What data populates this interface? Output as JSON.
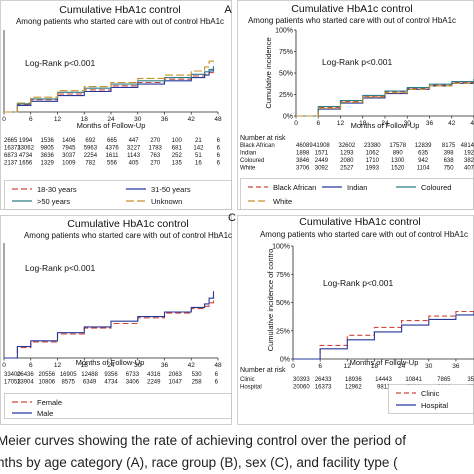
{
  "chart_data": [
    {
      "type": "line",
      "panel_letter": "A",
      "title": "Cumulative HbA1c control",
      "subtitle": "Among patients who started care with out of control HbA1c",
      "xlabel": "Months of Follow-Up",
      "ylabel": "",
      "annotation": "Log-Rank p<0.001",
      "x_ticks": [
        "0",
        "6",
        "12",
        "18",
        "24",
        "30",
        "36",
        "42",
        "48"
      ],
      "y_ticks": [],
      "xlim": [
        0,
        48
      ],
      "ylim": [
        0,
        1
      ],
      "grid": false,
      "risk_table_label": "",
      "risk_table": [
        {
          "group": "",
          "values": [
            "2665",
            "1994",
            "1536",
            "1406",
            "692",
            "665",
            "447",
            "270",
            "100",
            "21",
            "6"
          ]
        },
        {
          "group": "",
          "values": [
            "16373",
            "13062",
            "9805",
            "7945",
            "5963",
            "4376",
            "3227",
            "1783",
            "681",
            "142",
            "6"
          ]
        },
        {
          "group": "",
          "values": [
            "6873",
            "4734",
            "3636",
            "3037",
            "2254",
            "1611",
            "1143",
            "763",
            "252",
            "51",
            "6"
          ]
        },
        {
          "group": "",
          "values": [
            "2137",
            "1656",
            "1329",
            "1009",
            "782",
            "556",
            "405",
            "270",
            "135",
            "16",
            "6"
          ]
        }
      ],
      "series": [
        {
          "name": "18-30 years",
          "color": "#d0453c",
          "dash": "6,3",
          "x": [
            0,
            3,
            6,
            12,
            18,
            24,
            30,
            36,
            42,
            45,
            46,
            47
          ],
          "y": [
            0,
            0.09,
            0.15,
            0.22,
            0.27,
            0.32,
            0.36,
            0.4,
            0.44,
            0.46,
            0.48,
            0.51
          ]
        },
        {
          "name": "31-50 years",
          "color": "#27379a",
          "dash": "",
          "x": [
            0,
            3,
            6,
            12,
            18,
            24,
            30,
            36,
            42,
            45,
            46,
            47
          ],
          "y": [
            0,
            0.08,
            0.13,
            0.2,
            0.25,
            0.3,
            0.34,
            0.38,
            0.42,
            0.45,
            0.5,
            0.55
          ]
        },
        {
          "name": ">50 years",
          "color": "#2d7d86",
          "dash": "",
          "x": [
            0,
            3,
            6,
            12,
            18,
            24,
            30,
            36,
            42,
            45,
            46,
            47
          ],
          "y": [
            0,
            0.1,
            0.16,
            0.24,
            0.29,
            0.34,
            0.38,
            0.42,
            0.46,
            0.49,
            0.52,
            0.56
          ]
        },
        {
          "name": "Unknown",
          "color": "#c8902c",
          "dash": "8,3",
          "x": [
            0,
            3,
            6,
            12,
            18,
            24,
            30,
            36,
            42,
            45,
            46,
            47
          ],
          "y": [
            0,
            0.11,
            0.18,
            0.26,
            0.31,
            0.36,
            0.41,
            0.45,
            0.5,
            0.55,
            0.62,
            0.63
          ]
        }
      ]
    },
    {
      "type": "line",
      "panel_letter": "",
      "title": "Cumulative HbA1c control",
      "subtitle": "Among patients who started care with out of control HbA1c",
      "xlabel": "Months of Follow-Up",
      "ylabel": "Cumulative incidence",
      "annotation": "Log-Rank p<0.001",
      "x_ticks": [
        "0",
        "6",
        "12",
        "18",
        "24",
        "30",
        "36",
        "42",
        "48"
      ],
      "y_ticks": [
        "0%",
        "25%",
        "50%",
        "75%",
        "100%"
      ],
      "xlim": [
        0,
        48
      ],
      "ylim": [
        0,
        1
      ],
      "grid": false,
      "risk_table_label": "Number at risk",
      "risk_table": [
        {
          "group": "Black African",
          "values": [
            "46089",
            "41908",
            "32602",
            "23380",
            "17578",
            "12839",
            "8175",
            "4814"
          ]
        },
        {
          "group": "Indian",
          "values": [
            "1898",
            "1571",
            "1293",
            "1062",
            "890",
            "635",
            "398",
            "192"
          ]
        },
        {
          "group": "Coloured",
          "values": [
            "3846",
            "2449",
            "2080",
            "1710",
            "1300",
            "942",
            "638",
            "382"
          ]
        },
        {
          "group": "White",
          "values": [
            "3706",
            "3092",
            "2527",
            "1993",
            "1520",
            "1104",
            "750",
            "407"
          ]
        }
      ],
      "series": [
        {
          "name": "Black African",
          "color": "#d0453c",
          "dash": "5,3",
          "x": [
            0,
            6,
            12,
            18,
            24,
            30,
            36,
            42,
            48
          ],
          "y": [
            0,
            0.1,
            0.17,
            0.23,
            0.28,
            0.32,
            0.36,
            0.39,
            0.42
          ]
        },
        {
          "name": "Indian",
          "color": "#27379a",
          "dash": "",
          "x": [
            0,
            6,
            12,
            18,
            24,
            30,
            36,
            42,
            48
          ],
          "y": [
            0,
            0.08,
            0.15,
            0.21,
            0.26,
            0.31,
            0.35,
            0.38,
            0.41
          ]
        },
        {
          "name": "Coloured",
          "color": "#2d7d86",
          "dash": "",
          "x": [
            0,
            6,
            12,
            18,
            24,
            30,
            36,
            42,
            48
          ],
          "y": [
            0,
            0.11,
            0.18,
            0.24,
            0.29,
            0.33,
            0.37,
            0.4,
            0.43
          ]
        },
        {
          "name": "White",
          "color": "#c8902c",
          "dash": "7,3",
          "x": [
            0,
            6,
            12,
            18,
            24,
            30,
            36,
            42,
            48
          ],
          "y": [
            0,
            0.09,
            0.16,
            0.22,
            0.27,
            0.31,
            0.35,
            0.38,
            0.4
          ]
        }
      ]
    },
    {
      "type": "line",
      "panel_letter": "",
      "title": "Cumulative HbA1c control",
      "subtitle": "Among patients who started care with out of control HbA1c",
      "xlabel": "Months of Follow-Up",
      "ylabel": "",
      "annotation": "Log-Rank p<0.001",
      "x_ticks": [
        "0",
        "6",
        "12",
        "18",
        "24",
        "30",
        "36",
        "42",
        "48"
      ],
      "y_ticks": [],
      "xlim": [
        0,
        48
      ],
      "ylim": [
        0,
        1
      ],
      "grid": false,
      "risk_table_label": "",
      "risk_table": [
        {
          "group": "",
          "values": [
            "33400",
            "26436",
            "20556",
            "16905",
            "12488",
            "9356",
            "6733",
            "4316",
            "2063",
            "530",
            "6"
          ]
        },
        {
          "group": "",
          "values": [
            "17053",
            "13904",
            "10806",
            "8575",
            "6349",
            "4734",
            "3406",
            "2249",
            "1047",
            "258",
            "6"
          ]
        }
      ],
      "series": [
        {
          "name": "Female",
          "color": "#d0453c",
          "dash": "6,3",
          "x": [
            0,
            3,
            6,
            12,
            18,
            24,
            30,
            36,
            42,
            45,
            46,
            47
          ],
          "y": [
            0,
            0.09,
            0.14,
            0.21,
            0.26,
            0.3,
            0.35,
            0.39,
            0.43,
            0.45,
            0.48,
            0.52
          ]
        },
        {
          "name": "Male",
          "color": "#27379a",
          "dash": "",
          "x": [
            0,
            3,
            6,
            12,
            18,
            24,
            30,
            36,
            42,
            45,
            46,
            47
          ],
          "y": [
            0,
            0.1,
            0.15,
            0.22,
            0.27,
            0.32,
            0.36,
            0.4,
            0.44,
            0.47,
            0.52,
            0.58
          ]
        }
      ]
    },
    {
      "type": "line",
      "panel_letter": "C",
      "title": "Cumulative HbA1c control",
      "subtitle": "Among patients who started care with out of control HbA1c",
      "xlabel": "Months of Follow-Up",
      "ylabel": "Cumulative incidence of contro",
      "annotation": "Log-Rank p<0.001",
      "x_ticks": [
        "0",
        "6",
        "12",
        "18",
        "24",
        "30",
        "36"
      ],
      "y_ticks": [
        "0%",
        "25%",
        "50%",
        "75%",
        "100%"
      ],
      "xlim": [
        0,
        40
      ],
      "ylim": [
        0,
        1
      ],
      "grid": false,
      "risk_table_label": "Number at risk",
      "risk_table": [
        {
          "group": "Clinic",
          "values": [
            "30393",
            "26433",
            "18936",
            "14443",
            "10841",
            "7865",
            "35"
          ]
        },
        {
          "group": "Hospital",
          "values": [
            "20060",
            "16373",
            "12962",
            "9811",
            "7322",
            "5226",
            "35"
          ]
        }
      ],
      "series": [
        {
          "name": "Clinic",
          "color": "#d0453c",
          "dash": "5,3",
          "x": [
            0,
            6,
            12,
            18,
            24,
            30,
            36,
            40
          ],
          "y": [
            0,
            0.12,
            0.21,
            0.28,
            0.34,
            0.38,
            0.42,
            0.45
          ]
        },
        {
          "name": "Hospital",
          "color": "#27379a",
          "dash": "",
          "x": [
            0,
            6,
            12,
            18,
            24,
            30,
            36,
            40
          ],
          "y": [
            0,
            0.09,
            0.17,
            0.24,
            0.3,
            0.35,
            0.39,
            0.42
          ]
        }
      ]
    }
  ],
  "caption": {
    "line1": "Meier curves showing the rate of achieving control over the period of",
    "line2": "nths by age category (A), race group (B), sex (C), and facility type ("
  }
}
